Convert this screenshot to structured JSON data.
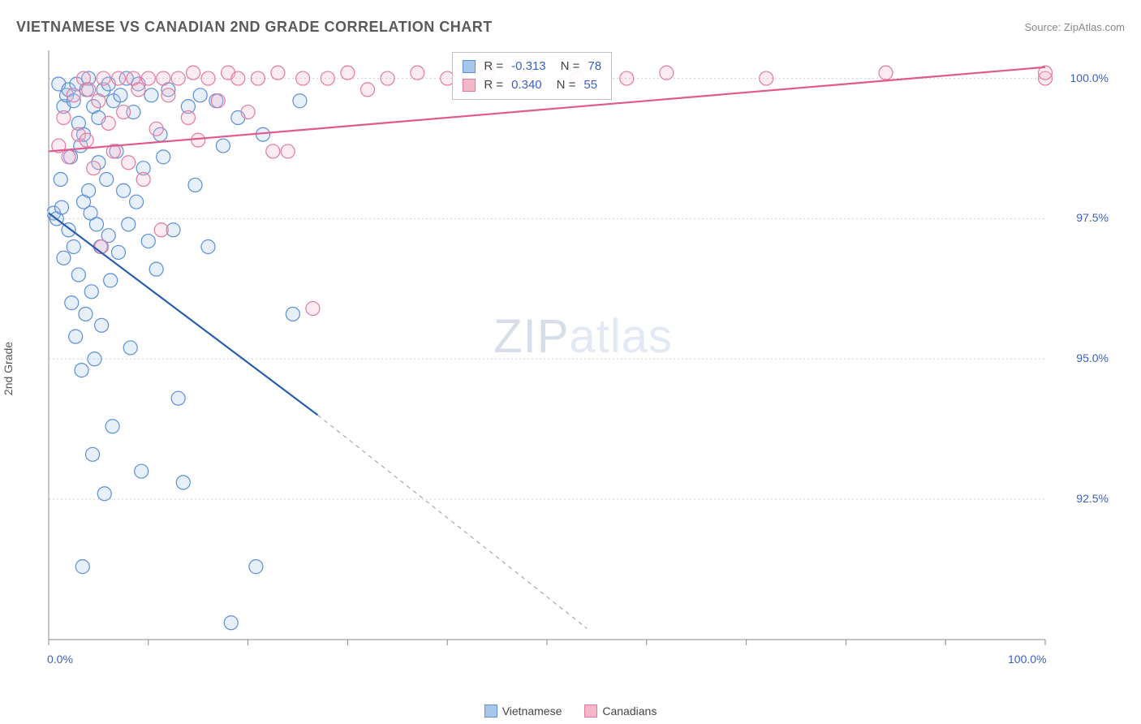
{
  "title": "VIETNAMESE VS CANADIAN 2ND GRADE CORRELATION CHART",
  "source": "Source: ZipAtlas.com",
  "ylabel": "2nd Grade",
  "watermark_bold": "ZIP",
  "watermark_thin": "atlas",
  "chart": {
    "type": "scatter",
    "background_color": "#ffffff",
    "grid_color": "#d0d0d0",
    "grid_dash": "2,3",
    "axis_color": "#888888",
    "tick_color": "#888888",
    "label_fontsize": 14,
    "label_color": "#3b5fc4",
    "title_fontsize": 18,
    "title_color": "#5a5a5a",
    "marker_radius": 8.5,
    "marker_stroke_width": 1.2,
    "marker_fill_opacity": 0.28,
    "trendline_width": 2.2,
    "trendline_dash_extrapolate": "5,5",
    "xlim": [
      0,
      100
    ],
    "ylim": [
      90,
      100.5
    ],
    "xtick_positions": [
      0,
      10,
      20,
      30,
      40,
      50,
      60,
      70,
      80,
      90,
      100
    ],
    "xtick_labels_shown": {
      "0": "0.0%",
      "100": "100.0%"
    },
    "ytick_positions": [
      92.5,
      95.0,
      97.5,
      100.0
    ],
    "ytick_labels": [
      "92.5%",
      "95.0%",
      "97.5%",
      "100.0%"
    ],
    "stats_box": {
      "pos_pct": {
        "x": 40.5,
        "y_top_chart_pct_from_top": 0
      },
      "rows": [
        {
          "color_fill": "#a9c6ea",
          "color_stroke": "#5b8fd6",
          "label": "R =",
          "r": "-0.313",
          "n_label": "N =",
          "n": "78"
        },
        {
          "color_fill": "#f4b8c8",
          "color_stroke": "#e07ba0",
          "label": "R =",
          "r": "0.340",
          "n_label": "N =",
          "n": "55"
        }
      ]
    },
    "legend_bottom": [
      {
        "color_fill": "#a9c6ea",
        "color_stroke": "#5b8fd6",
        "label": "Vietnamese"
      },
      {
        "color_fill": "#f4b8c8",
        "color_stroke": "#e07ba0",
        "label": "Canadians"
      }
    ],
    "series": [
      {
        "name": "Vietnamese",
        "color_stroke": "#5b8fd6",
        "color_fill": "#a9c6ea",
        "trend_color": "#2a5db0",
        "trend": {
          "x1": 0,
          "y1": 97.6,
          "x2_solid": 27,
          "y2_solid": 94.0,
          "x2_dash": 54,
          "y2_dash": 90.2
        },
        "points": [
          [
            0.5,
            97.6
          ],
          [
            0.8,
            97.5
          ],
          [
            1.0,
            99.9
          ],
          [
            1.2,
            98.2
          ],
          [
            1.3,
            97.7
          ],
          [
            1.5,
            99.5
          ],
          [
            1.5,
            96.8
          ],
          [
            1.8,
            99.7
          ],
          [
            2.0,
            99.8
          ],
          [
            2.0,
            97.3
          ],
          [
            2.2,
            98.6
          ],
          [
            2.3,
            96.0
          ],
          [
            2.5,
            99.6
          ],
          [
            2.5,
            97.0
          ],
          [
            2.7,
            95.4
          ],
          [
            2.8,
            99.9
          ],
          [
            3.0,
            99.2
          ],
          [
            3.0,
            96.5
          ],
          [
            3.2,
            98.8
          ],
          [
            3.3,
            94.8
          ],
          [
            3.4,
            91.3
          ],
          [
            3.5,
            99.0
          ],
          [
            3.5,
            97.8
          ],
          [
            3.7,
            95.8
          ],
          [
            3.8,
            99.8
          ],
          [
            4.0,
            100.0
          ],
          [
            4.0,
            98.0
          ],
          [
            4.2,
            97.6
          ],
          [
            4.3,
            96.2
          ],
          [
            4.4,
            93.3
          ],
          [
            4.5,
            99.5
          ],
          [
            4.6,
            95.0
          ],
          [
            4.8,
            97.4
          ],
          [
            5.0,
            99.3
          ],
          [
            5.0,
            98.5
          ],
          [
            5.2,
            97.0
          ],
          [
            5.3,
            95.6
          ],
          [
            5.5,
            99.8
          ],
          [
            5.6,
            92.6
          ],
          [
            5.8,
            98.2
          ],
          [
            6.0,
            97.2
          ],
          [
            6.0,
            99.9
          ],
          [
            6.2,
            96.4
          ],
          [
            6.4,
            93.8
          ],
          [
            6.5,
            99.6
          ],
          [
            6.8,
            98.7
          ],
          [
            7.0,
            96.9
          ],
          [
            7.2,
            99.7
          ],
          [
            7.5,
            98.0
          ],
          [
            7.8,
            100.0
          ],
          [
            8.0,
            97.4
          ],
          [
            8.2,
            95.2
          ],
          [
            8.5,
            99.4
          ],
          [
            8.8,
            97.8
          ],
          [
            9.0,
            99.9
          ],
          [
            9.3,
            93.0
          ],
          [
            9.5,
            98.4
          ],
          [
            10.0,
            97.1
          ],
          [
            10.3,
            99.7
          ],
          [
            10.8,
            96.6
          ],
          [
            11.2,
            99.0
          ],
          [
            11.5,
            98.6
          ],
          [
            12.0,
            99.8
          ],
          [
            12.5,
            97.3
          ],
          [
            13.0,
            94.3
          ],
          [
            13.5,
            92.8
          ],
          [
            14.0,
            99.5
          ],
          [
            14.7,
            98.1
          ],
          [
            15.2,
            99.7
          ],
          [
            16.0,
            97.0
          ],
          [
            16.8,
            99.6
          ],
          [
            17.5,
            98.8
          ],
          [
            18.3,
            90.3
          ],
          [
            19.0,
            99.3
          ],
          [
            20.8,
            91.3
          ],
          [
            21.5,
            99.0
          ],
          [
            24.5,
            95.8
          ],
          [
            25.2,
            99.6
          ]
        ]
      },
      {
        "name": "Canadians",
        "color_stroke": "#e07ba0",
        "color_fill": "#f4b8c8",
        "trend_color": "#e05a8a",
        "trend": {
          "x1": 0,
          "y1": 98.7,
          "x2_solid": 100,
          "y2_solid": 100.2,
          "x2_dash": 100,
          "y2_dash": 100.2
        },
        "points": [
          [
            1.0,
            98.8
          ],
          [
            1.5,
            99.3
          ],
          [
            2.0,
            98.6
          ],
          [
            2.5,
            99.7
          ],
          [
            3.0,
            99.0
          ],
          [
            3.5,
            100.0
          ],
          [
            3.8,
            98.9
          ],
          [
            4.0,
            99.8
          ],
          [
            4.5,
            98.4
          ],
          [
            5.0,
            99.6
          ],
          [
            5.3,
            97.0
          ],
          [
            5.5,
            100.0
          ],
          [
            6.0,
            99.2
          ],
          [
            6.5,
            98.7
          ],
          [
            7.0,
            100.0
          ],
          [
            7.5,
            99.4
          ],
          [
            8.0,
            98.5
          ],
          [
            8.5,
            100.0
          ],
          [
            9.0,
            99.8
          ],
          [
            9.5,
            98.2
          ],
          [
            10.0,
            100.0
          ],
          [
            10.8,
            99.1
          ],
          [
            11.3,
            97.3
          ],
          [
            11.5,
            100.0
          ],
          [
            12.0,
            99.7
          ],
          [
            13.0,
            100.0
          ],
          [
            14.0,
            99.3
          ],
          [
            14.5,
            100.1
          ],
          [
            15.0,
            98.9
          ],
          [
            16.0,
            100.0
          ],
          [
            17.0,
            99.6
          ],
          [
            18.0,
            100.1
          ],
          [
            19.0,
            100.0
          ],
          [
            20.0,
            99.4
          ],
          [
            21.0,
            100.0
          ],
          [
            22.5,
            98.7
          ],
          [
            23.0,
            100.1
          ],
          [
            24.0,
            98.7
          ],
          [
            25.5,
            100.0
          ],
          [
            26.5,
            95.9
          ],
          [
            28.0,
            100.0
          ],
          [
            30.0,
            100.1
          ],
          [
            32.0,
            99.8
          ],
          [
            34.0,
            100.0
          ],
          [
            37.0,
            100.1
          ],
          [
            40.0,
            100.0
          ],
          [
            44.0,
            100.1
          ],
          [
            48.0,
            100.0
          ],
          [
            53.0,
            100.0
          ],
          [
            58.0,
            100.0
          ],
          [
            62.0,
            100.1
          ],
          [
            72.0,
            100.0
          ],
          [
            84.0,
            100.1
          ],
          [
            100.0,
            100.0
          ],
          [
            100.0,
            100.1
          ]
        ]
      }
    ]
  }
}
